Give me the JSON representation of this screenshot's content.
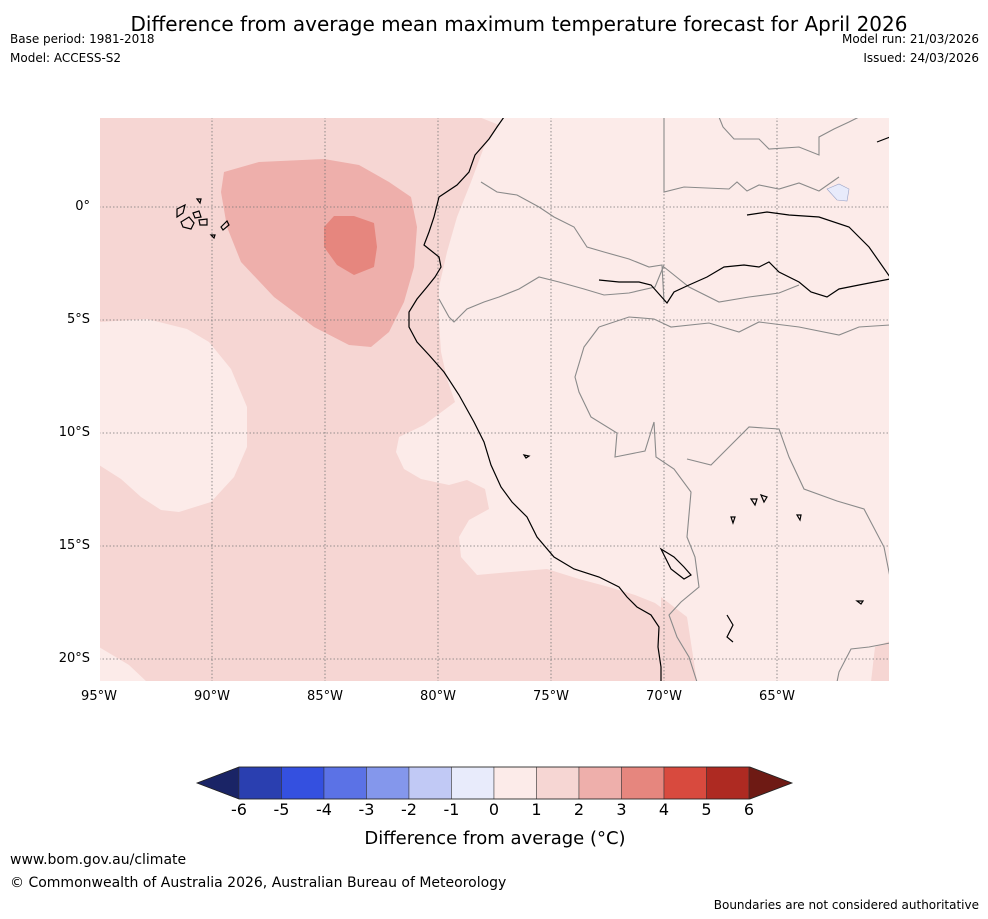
{
  "title": "Difference from average mean maximum temperature forecast for April 2026",
  "base_period": "Base period: 1981-2018",
  "model": "Model: ACCESS-S2",
  "model_run": "Model run: 21/03/2026",
  "issued": "Issued: 24/03/2026",
  "latitude_labels": [
    "0°",
    "5°S",
    "10°S",
    "15°S",
    "20°S"
  ],
  "longitude_labels": [
    "95°W",
    "90°W",
    "85°W",
    "80°W",
    "75°W",
    "70°W",
    "65°W"
  ],
  "colorbar": {
    "ticks": [
      "-6",
      "-5",
      "-4",
      "-3",
      "-2",
      "-1",
      "0",
      "1",
      "2",
      "3",
      "4",
      "5",
      "6"
    ],
    "colors": [
      "#1a2466",
      "#2a3fb0",
      "#3450e0",
      "#5b72e6",
      "#8497ec",
      "#c1c9f5",
      "#e8ebfb",
      "#fcebe9",
      "#f6d6d3",
      "#eeafab",
      "#e6867e",
      "#d84a3e",
      "#ae2a22",
      "#6e1a14"
    ],
    "label": "Difference from average (°C)"
  },
  "map_colors": {
    "anomaly_0_1": "#fcebe9",
    "anomaly_1_2": "#f6d6d3",
    "anomaly_2_3": "#eeafab",
    "anomaly_3_4": "#e6867e",
    "anomaly_neg_1_0": "#e8ebfb",
    "coastline": "#000000",
    "border": "#8a8a8a",
    "gridline": "#777777"
  },
  "website": "www.bom.gov.au/climate",
  "copyright": "© Commonwealth of Australia 2026, Australian Bureau of Meteorology",
  "disclaimer": "Boundaries are not considered authoritative"
}
